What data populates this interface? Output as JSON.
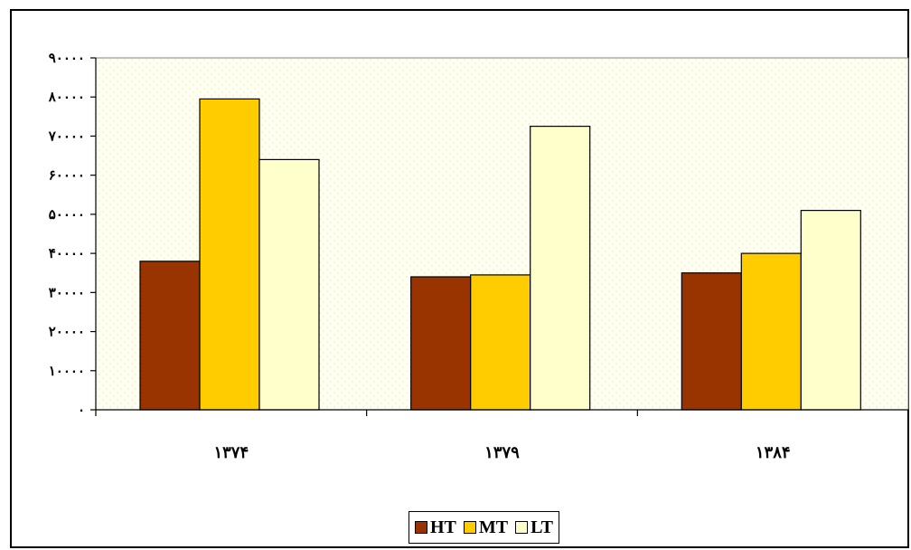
{
  "chart_data": {
    "type": "bar",
    "title": "",
    "xlabel": "",
    "ylabel": "",
    "categories": [
      "۱۳۷۴",
      "۱۳۷۹",
      "۱۳۸۴"
    ],
    "series": [
      {
        "name": "HT",
        "color": "#993300",
        "values": [
          38000,
          34000,
          35000
        ]
      },
      {
        "name": "MT",
        "color": "#ffcc00",
        "values": [
          79500,
          34500,
          40000
        ]
      },
      {
        "name": "LT",
        "color": "#ffffcc",
        "values": [
          64000,
          72500,
          51000
        ]
      }
    ],
    "ylim": [
      0,
      90000
    ],
    "yticks": [
      {
        "value": 0,
        "label": "۰"
      },
      {
        "value": 10000,
        "label": "۱۰۰۰۰"
      },
      {
        "value": 20000,
        "label": "۲۰۰۰۰"
      },
      {
        "value": 30000,
        "label": "۳۰۰۰۰"
      },
      {
        "value": 40000,
        "label": "۴۰۰۰۰"
      },
      {
        "value": 50000,
        "label": "۵۰۰۰۰"
      },
      {
        "value": 60000,
        "label": "۶۰۰۰۰"
      },
      {
        "value": 70000,
        "label": "۷۰۰۰۰"
      },
      {
        "value": 80000,
        "label": "۸۰۰۰۰"
      },
      {
        "value": 90000,
        "label": "۹۰۰۰۰"
      }
    ],
    "grid": false,
    "plot_background": "#fffff0",
    "legend_position": "bottom-center"
  }
}
